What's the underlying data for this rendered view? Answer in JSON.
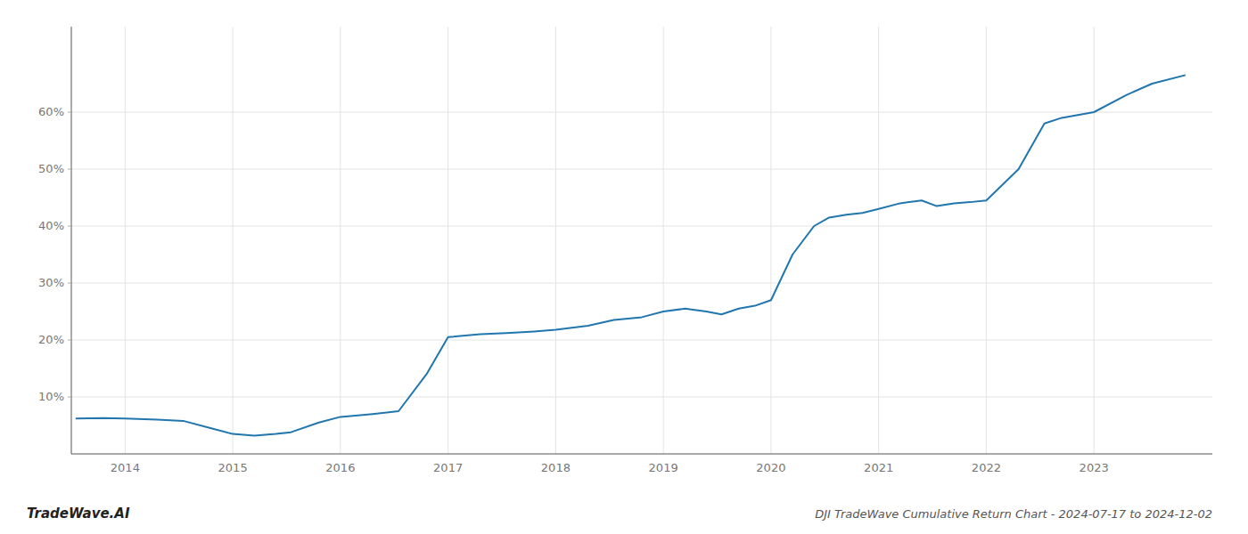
{
  "chart_data": {
    "type": "line",
    "title": "DJI TradeWave Cumulative Return Chart - 2024-07-17 to 2024-12-02",
    "annotations": [
      "TradeWave.AI"
    ],
    "color": "#2176ae",
    "grid": true,
    "x": [
      2013.54,
      2013.8,
      2014.0,
      2014.3,
      2014.54,
      2014.8,
      2015.0,
      2015.2,
      2015.4,
      2015.54,
      2015.8,
      2016.0,
      2016.3,
      2016.54,
      2016.8,
      2017.0,
      2017.3,
      2017.54,
      2017.8,
      2018.0,
      2018.3,
      2018.54,
      2018.8,
      2019.0,
      2019.2,
      2019.4,
      2019.54,
      2019.7,
      2019.85,
      2020.0,
      2020.2,
      2020.4,
      2020.54,
      2020.7,
      2020.85,
      2021.0,
      2021.2,
      2021.4,
      2021.54,
      2021.7,
      2021.85,
      2022.0,
      2022.3,
      2022.54,
      2022.7,
      2022.85,
      2023.0,
      2023.3,
      2023.54,
      2023.85
    ],
    "values": [
      6.2,
      6.3,
      6.2,
      6.0,
      5.8,
      4.5,
      3.5,
      3.2,
      3.5,
      3.8,
      5.5,
      6.5,
      7.0,
      7.5,
      14.0,
      20.5,
      21.0,
      21.2,
      21.5,
      21.8,
      22.5,
      23.5,
      24.0,
      25.0,
      25.5,
      25.0,
      24.5,
      25.5,
      26.0,
      27.0,
      35.0,
      40.0,
      41.5,
      42.0,
      42.3,
      43.0,
      44.0,
      44.5,
      43.5,
      44.0,
      44.2,
      44.5,
      50.0,
      58.0,
      59.0,
      59.5,
      60.0,
      63.0,
      65.0,
      66.5
    ],
    "xlim": [
      2013.5,
      2024.1
    ],
    "ylim": [
      0,
      75
    ],
    "xticks": [
      2014,
      2015,
      2016,
      2017,
      2018,
      2019,
      2020,
      2021,
      2022,
      2023
    ],
    "yticks": [
      {
        "value": 10,
        "label": "10%"
      },
      {
        "value": 20,
        "label": "20%"
      },
      {
        "value": 30,
        "label": "30%"
      },
      {
        "value": 40,
        "label": "40%"
      },
      {
        "value": 50,
        "label": "50%"
      },
      {
        "value": 60,
        "label": "60%"
      }
    ]
  }
}
